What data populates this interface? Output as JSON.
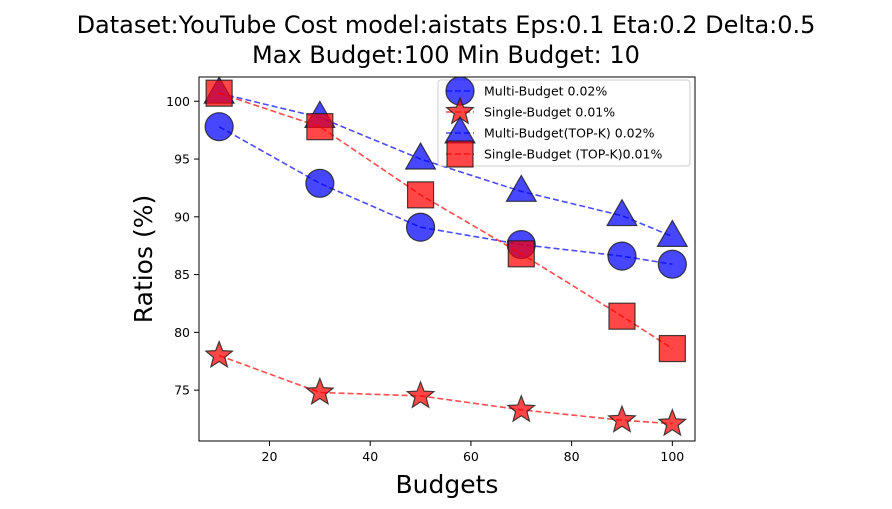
{
  "chart_data": {
    "type": "line",
    "title_line1": "Dataset:YouTube Cost model:aistats Eps:0.1 Eta:0.2 Delta:0.5",
    "title_line2": "Max Budget:100 Min Budget: 10",
    "xlabel": "Budgets",
    "ylabel": "Ratios (%)",
    "xlim": [
      6,
      104.5
    ],
    "ylim": [
      70.6,
      102.1
    ],
    "x_ticks": [
      20,
      40,
      60,
      80,
      100
    ],
    "y_ticks": [
      75,
      80,
      85,
      90,
      95,
      100
    ],
    "grid": false,
    "legend_position": "top-right",
    "x": [
      10,
      30,
      50,
      70,
      90,
      100
    ],
    "series": [
      {
        "name": "Multi-Budget 0.02%",
        "marker": "circle",
        "color": "#0000ff",
        "values": [
          97.8,
          92.9,
          89.1,
          87.6,
          86.6,
          85.9
        ]
      },
      {
        "name": "Single-Budget 0.01%",
        "marker": "star",
        "color": "#ff0000",
        "values": [
          78.0,
          74.8,
          74.5,
          73.3,
          72.4,
          72.1
        ]
      },
      {
        "name": "Multi-Budget(TOP-K) 0.02%",
        "marker": "triangle",
        "color": "#0000ff",
        "values": [
          100.7,
          98.6,
          95.0,
          92.2,
          90.1,
          88.3
        ]
      },
      {
        "name": "Single-Budget (TOP-K)0.01%",
        "marker": "square",
        "color": "#ff0000",
        "values": [
          100.7,
          97.8,
          91.9,
          86.8,
          81.4,
          78.6
        ]
      }
    ]
  }
}
